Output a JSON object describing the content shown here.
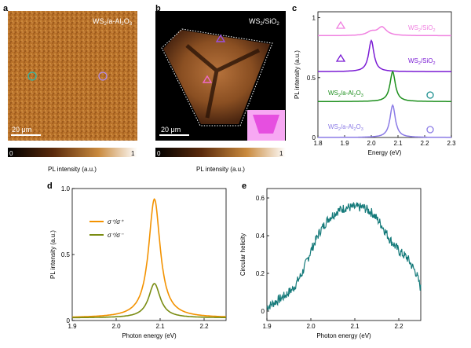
{
  "panels": {
    "a": {
      "letter": "a",
      "title_main": "WS",
      "title_sub2": "2",
      "title_rest": "/a-Al",
      "title_sub3": "2",
      "title_rest2": "O",
      "title_sub4": "3",
      "scalebar": "20 μm",
      "cbar_min": "0",
      "cbar_max": "1",
      "cbar_label": "PL intensity (a.u.)"
    },
    "b": {
      "letter": "b",
      "title_main": "WS",
      "title_sub": "2",
      "title_rest": "/SiO",
      "title_sub2": "2",
      "scalebar": "20 μm",
      "cbar_min": "0",
      "cbar_max": "1",
      "cbar_label": "PL intensity (a.u.)"
    },
    "c": {
      "letter": "c",
      "labels": [
        {
          "main": "WS",
          "sub": "2",
          "rest": "/SiO",
          "sub2": "2",
          "rest2": ""
        },
        {
          "main": "WS",
          "sub": "2",
          "rest": "/SiO",
          "sub2": "2",
          "rest2": ""
        },
        {
          "main": "WS",
          "sub": "2",
          "rest": "/a-Al",
          "sub2": "2",
          "rest2": "O",
          "sub3": "3"
        },
        {
          "main": "WS",
          "sub": "2",
          "rest": "/a-Al",
          "sub2": "2",
          "rest2": "O",
          "sub3": "3"
        }
      ]
    },
    "d": {
      "letter": "d",
      "legend_co": "σ⁺/σ⁺",
      "legend_cross": "σ⁺/σ⁻"
    },
    "e": {
      "letter": "e"
    }
  },
  "chart_data": [
    {
      "panel": "c",
      "type": "line",
      "xlabel": "Energy (eV)",
      "ylabel": "PL intensity (a.u.)",
      "xlim": [
        1.8,
        2.3
      ],
      "ylim": [
        0,
        1.05
      ],
      "xticks": [
        "1.8",
        "1.9",
        "2.0",
        "2.1",
        "2.2",
        "2.3"
      ],
      "yticks": [
        "0",
        "0.5",
        "1"
      ],
      "xtick_values": [
        1.8,
        1.9,
        2.0,
        2.1,
        2.2,
        2.3
      ],
      "ytick_values": [
        0,
        0.5,
        1
      ],
      "series": [
        {
          "color": "#f081e0",
          "marker": "triangle",
          "baseline": 0.85,
          "peak": 2.04,
          "width": 0.02,
          "amp": 0.07
        },
        {
          "color": "#7a1bd4",
          "marker": "triangle",
          "baseline": 0.55,
          "peak": 2.0,
          "width": 0.012,
          "amp": 0.26
        },
        {
          "color": "#1c8f1c",
          "marker": "circle",
          "baseline": 0.3,
          "peak": 2.08,
          "width": 0.012,
          "amp": 0.25
        },
        {
          "color": "#8b7be6",
          "marker": "circle",
          "baseline": 0.0,
          "peak": 2.08,
          "width": 0.012,
          "amp": 0.27
        }
      ]
    },
    {
      "panel": "d",
      "type": "line",
      "xlabel": "Photon energy (eV)",
      "ylabel": "PL intensity (a.u.)",
      "xlim": [
        1.9,
        2.25
      ],
      "ylim": [
        0,
        1.0
      ],
      "xticks": [
        "1.9",
        "2.0",
        "2.1",
        "2.2"
      ],
      "yticks": [
        "0",
        "0.5",
        "1.0"
      ],
      "xtick_values": [
        1.9,
        2.0,
        2.1,
        2.2
      ],
      "ytick_values": [
        0,
        0.5,
        1.0
      ],
      "series": [
        {
          "name": "σ⁺/σ⁺",
          "color": "#f39200",
          "peak": 2.087,
          "width": 0.016,
          "amp": 0.9,
          "base": 0.02
        },
        {
          "name": "σ⁺/σ⁻",
          "color": "#7a8c12",
          "peak": 2.087,
          "width": 0.016,
          "amp": 0.26,
          "base": 0.02
        }
      ]
    },
    {
      "panel": "e",
      "type": "line",
      "xlabel": "Photon energy (eV)",
      "ylabel": "Circular helicity",
      "xlim": [
        1.9,
        2.25
      ],
      "ylim": [
        -0.05,
        0.65
      ],
      "xticks": [
        "1.9",
        "2.0",
        "2.1",
        "2.2"
      ],
      "yticks": [
        "0",
        "0.2",
        "0.4",
        "0.6"
      ],
      "xtick_values": [
        1.9,
        2.0,
        2.1,
        2.2
      ],
      "ytick_values": [
        0,
        0.2,
        0.4,
        0.6
      ],
      "series": [
        {
          "color": "#157a7a",
          "points": [
            [
              1.9,
              0.02
            ],
            [
              1.92,
              0.05
            ],
            [
              1.94,
              0.08
            ],
            [
              1.96,
              0.12
            ],
            [
              1.98,
              0.2
            ],
            [
              2.0,
              0.32
            ],
            [
              2.02,
              0.42
            ],
            [
              2.04,
              0.49
            ],
            [
              2.06,
              0.53
            ],
            [
              2.08,
              0.55
            ],
            [
              2.1,
              0.55
            ],
            [
              2.12,
              0.55
            ],
            [
              2.14,
              0.52
            ],
            [
              2.16,
              0.46
            ],
            [
              2.18,
              0.38
            ],
            [
              2.2,
              0.32
            ],
            [
              2.22,
              0.28
            ],
            [
              2.24,
              0.2
            ],
            [
              2.25,
              0.12
            ]
          ]
        }
      ]
    }
  ]
}
